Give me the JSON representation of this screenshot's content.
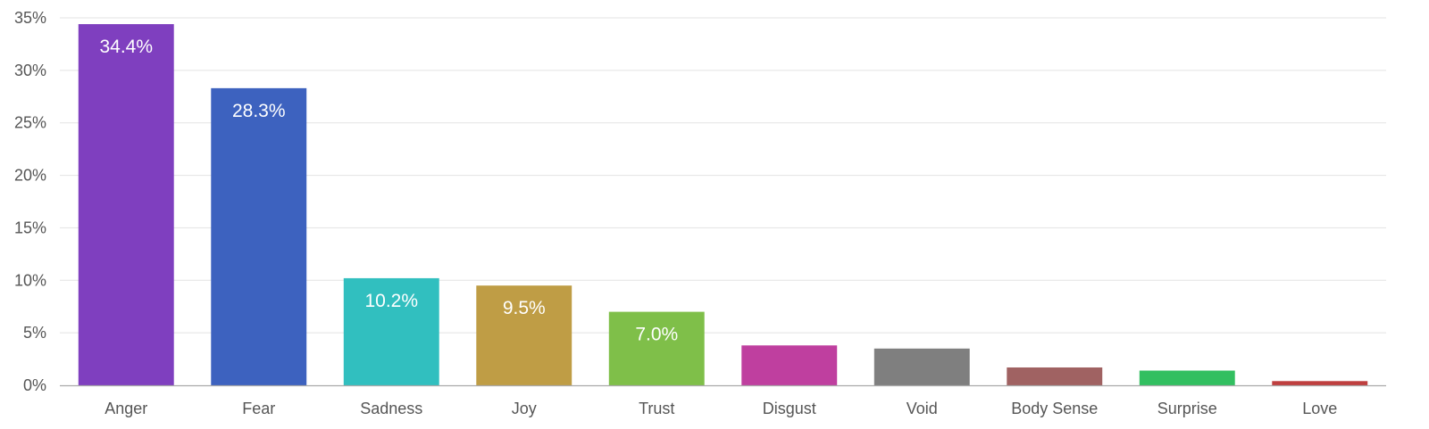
{
  "chart_data": {
    "type": "bar",
    "categories": [
      "Anger",
      "Fear",
      "Sadness",
      "Joy",
      "Trust",
      "Disgust",
      "Void",
      "Body Sense",
      "Surprise",
      "Love"
    ],
    "values": [
      34.4,
      28.3,
      10.2,
      9.5,
      7.0,
      3.8,
      3.5,
      1.7,
      1.4,
      0.4
    ],
    "data_labels": [
      "34.4%",
      "28.3%",
      "10.2%",
      "9.5%",
      "7.0%",
      "",
      "",
      "",
      "",
      ""
    ],
    "colors": [
      "#7f3fbf",
      "#3d62bf",
      "#31bfbf",
      "#bf9d45",
      "#7fbf49",
      "#bf3f9f",
      "#7f7f7f",
      "#a06262",
      "#32bf60",
      "#bf3f3f"
    ],
    "y_ticks": [
      0,
      5,
      10,
      15,
      20,
      25,
      30,
      35
    ],
    "y_tick_labels": [
      "0%",
      "5%",
      "10%",
      "15%",
      "20%",
      "25%",
      "30%",
      "35%"
    ],
    "ylim": [
      0,
      35
    ],
    "grid": true,
    "legend": "none",
    "title": "",
    "xlabel": "",
    "ylabel": ""
  }
}
